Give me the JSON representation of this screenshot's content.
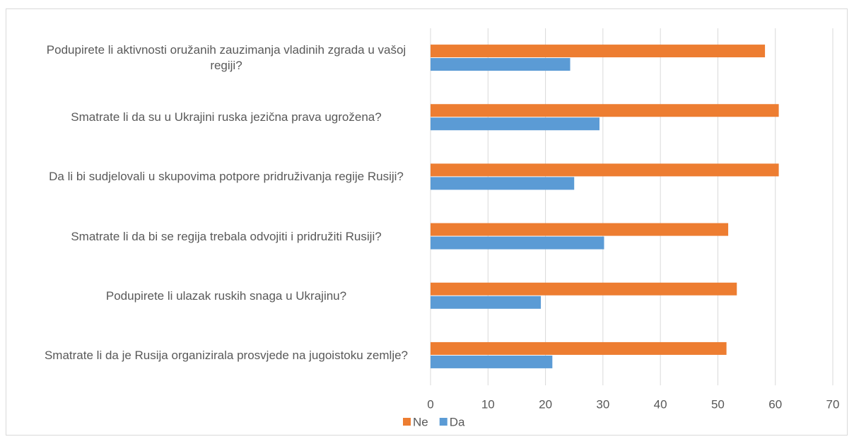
{
  "chart_data": {
    "type": "hbar",
    "categories": [
      "Podupirete li aktivnosti oružanih zauzimanja vladinih zgrada u vašoj regiji?",
      "Smatrate li da su u Ukrajini ruska jezična prava ugrožena?",
      "Da li bi sudjelovali u skupovima potpore pridruživanja regije Rusiji?",
      "Smatrate li da bi se regija trebala odvojiti i pridružiti Rusiji?",
      "Podupirete li ulazak ruskih snaga u Ukrajinu?",
      "Smatrate li da je Rusija organizirala prosvjede na jugoistoku zemlje?"
    ],
    "series": [
      {
        "name": "Ne",
        "color": "#ed7d31",
        "values": [
          58.2,
          60.6,
          60.6,
          51.8,
          53.3,
          51.5
        ]
      },
      {
        "name": "Da",
        "color": "#5b9bd5",
        "values": [
          24.3,
          29.4,
          25.0,
          30.2,
          19.2,
          21.2
        ]
      }
    ],
    "xlim": [
      0,
      70
    ],
    "xticks": [
      0,
      10,
      20,
      30,
      40,
      50,
      60,
      70
    ],
    "grid": true,
    "legend": "bottom"
  }
}
